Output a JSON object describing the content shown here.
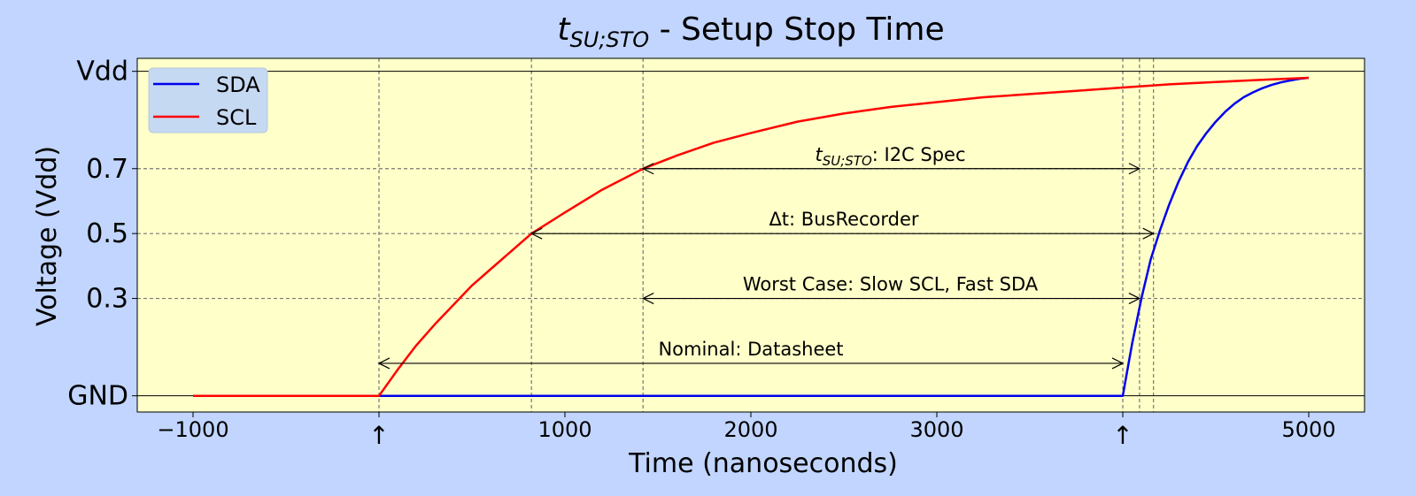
{
  "chart_data": {
    "type": "line",
    "title": {
      "symbol": "t",
      "subscript": "SU;STO",
      "text": " - Setup Stop Time"
    },
    "xlabel": "Time (nanoseconds)",
    "ylabel": "Voltage (Vdd)",
    "xlim": [
      -1300,
      5300
    ],
    "ylim": [
      -0.05,
      1.04
    ],
    "xticks": [
      {
        "value": -1000,
        "label": "−1000"
      },
      {
        "value": 0,
        "label": "↑"
      },
      {
        "value": 1000,
        "label": "1000"
      },
      {
        "value": 2000,
        "label": "2000"
      },
      {
        "value": 3000,
        "label": "3000"
      },
      {
        "value": 4000,
        "label": "↑"
      },
      {
        "value": 5000,
        "label": "5000"
      }
    ],
    "yticks": [
      {
        "value": 0,
        "label": "GND"
      },
      {
        "value": 0.3,
        "label": "0.3"
      },
      {
        "value": 0.5,
        "label": "0.5"
      },
      {
        "value": 0.7,
        "label": "0.7"
      },
      {
        "value": 1,
        "label": "Vdd"
      }
    ],
    "vlines": [
      0,
      820,
      1420,
      4000,
      4090,
      4165
    ],
    "hlines_dashed": [
      0.3,
      0.5,
      0.7
    ],
    "hlines_solid": [
      0,
      1
    ],
    "legend_position": "top-left",
    "series": [
      {
        "name": "SDA",
        "color": "#0000ee",
        "x": [
          -1000,
          0,
          1000,
          2000,
          3000,
          3999,
          4000,
          4050,
          4100,
          4150,
          4200,
          4250,
          4300,
          4350,
          4400,
          4450,
          4500,
          4550,
          4600,
          4650,
          4700,
          4750,
          4800,
          4850,
          4900,
          4950,
          5000
        ],
        "y": [
          0,
          0,
          0,
          0,
          0,
          0,
          0,
          0.16,
          0.3,
          0.42,
          0.51,
          0.59,
          0.66,
          0.72,
          0.77,
          0.81,
          0.845,
          0.875,
          0.9,
          0.92,
          0.935,
          0.948,
          0.958,
          0.966,
          0.972,
          0.977,
          0.98
        ]
      },
      {
        "name": "SCL",
        "color": "#ff0000",
        "x": [
          -1000,
          0,
          100,
          200,
          300,
          400,
          500,
          600,
          700,
          820,
          1000,
          1200,
          1420,
          1600,
          1800,
          2000,
          2250,
          2500,
          2750,
          3000,
          3250,
          3500,
          3750,
          4000,
          4250,
          4500,
          4750,
          5000
        ],
        "y": [
          0,
          0,
          0.08,
          0.155,
          0.22,
          0.28,
          0.34,
          0.39,
          0.44,
          0.5,
          0.565,
          0.635,
          0.7,
          0.74,
          0.78,
          0.81,
          0.845,
          0.87,
          0.89,
          0.905,
          0.92,
          0.93,
          0.94,
          0.95,
          0.96,
          0.967,
          0.974,
          0.98
        ]
      }
    ],
    "annotations": [
      {
        "symbol": "t",
        "subscript": "SU;STO",
        "text": ": I2C Spec",
        "x1": 1420,
        "x2": 4090,
        "y": 0.7,
        "label_x": 2750
      },
      {
        "text": "Δt: BusRecorder",
        "x1": 820,
        "x2": 4165,
        "y": 0.5,
        "label_x": 2500
      },
      {
        "text": "Worst Case: Slow SCL, Fast SDA",
        "x1": 1420,
        "x2": 4090,
        "y": 0.3,
        "label_x": 2750
      },
      {
        "text": "Nominal: Datasheet",
        "x1": 0,
        "x2": 4000,
        "y": 0.1,
        "label_x": 2000
      }
    ]
  }
}
